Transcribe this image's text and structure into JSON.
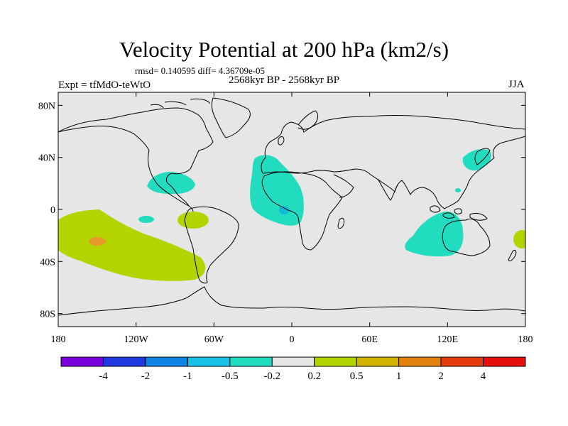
{
  "header": {
    "title": "Velocity Potential at 200 hPa (km2/s)",
    "stats": "rmsd= 0.140595 diff= 4.36709e-05",
    "experiment": "Expt = tfMdO-teWtO",
    "period": "2568kyr BP - 2568kyr BP",
    "season": "JJA"
  },
  "map": {
    "background_color": "#e6e6e6",
    "coastline_color": "#000000",
    "lat_ticks": [
      {
        "lat": 80,
        "label": "80N"
      },
      {
        "lat": 40,
        "label": "40N"
      },
      {
        "lat": 0,
        "label": "0"
      },
      {
        "lat": -40,
        "label": "40S"
      },
      {
        "lat": -80,
        "label": "80S"
      }
    ],
    "lon_ticks": [
      {
        "lon": -180,
        "label": "180"
      },
      {
        "lon": -120,
        "label": "120W"
      },
      {
        "lon": -60,
        "label": "60W"
      },
      {
        "lon": 0,
        "label": "0"
      },
      {
        "lon": 60,
        "label": "60E"
      },
      {
        "lon": 120,
        "label": "120E"
      },
      {
        "lon": 180,
        "label": "180"
      }
    ],
    "anomaly_regions": [
      {
        "name": "south-pacific-positive",
        "level": "0.2 to 0.5",
        "color": "#b4d400"
      },
      {
        "name": "south-pacific-core",
        "level": "1 to 2",
        "color": "#e59a2a"
      },
      {
        "name": "east-pacific-positive",
        "level": "0.2 to 0.5",
        "color": "#b4d400"
      },
      {
        "name": "far-east-pacific-positive",
        "level": "0.2 to 0.5",
        "color": "#b4d400"
      },
      {
        "name": "central-america-negative",
        "level": "-0.5 to -0.2",
        "color": "#22dcc0"
      },
      {
        "name": "east-pacific-negative",
        "level": "-0.5 to -0.2",
        "color": "#22dcc0"
      },
      {
        "name": "atlantic-africa-negative",
        "level": "-0.5 to -0.2",
        "color": "#22dcc0"
      },
      {
        "name": "atlantic-core",
        "level": "-1 to -0.5",
        "color": "#0fb9d8"
      },
      {
        "name": "indian-ocean-negative",
        "level": "-0.5 to -0.2",
        "color": "#22dcc0"
      },
      {
        "name": "japan-negative",
        "level": "-0.5 to -0.2",
        "color": "#22dcc0"
      },
      {
        "name": "philippines-negative",
        "level": "-0.5 to -0.2",
        "color": "#22dcc0"
      }
    ]
  },
  "colorbar": {
    "colors": [
      "#7a00dc",
      "#1e3adf",
      "#0f82e6",
      "#19c0e6",
      "#22dcc0",
      "#e6e6e6",
      "#b4d400",
      "#d2b400",
      "#e0820d",
      "#e53c0e",
      "#e60f0f"
    ],
    "labels": [
      "-4",
      "-2",
      "-1",
      "-0.5",
      "-0.2",
      "0.2",
      "0.5",
      "1",
      "2",
      "4"
    ]
  }
}
